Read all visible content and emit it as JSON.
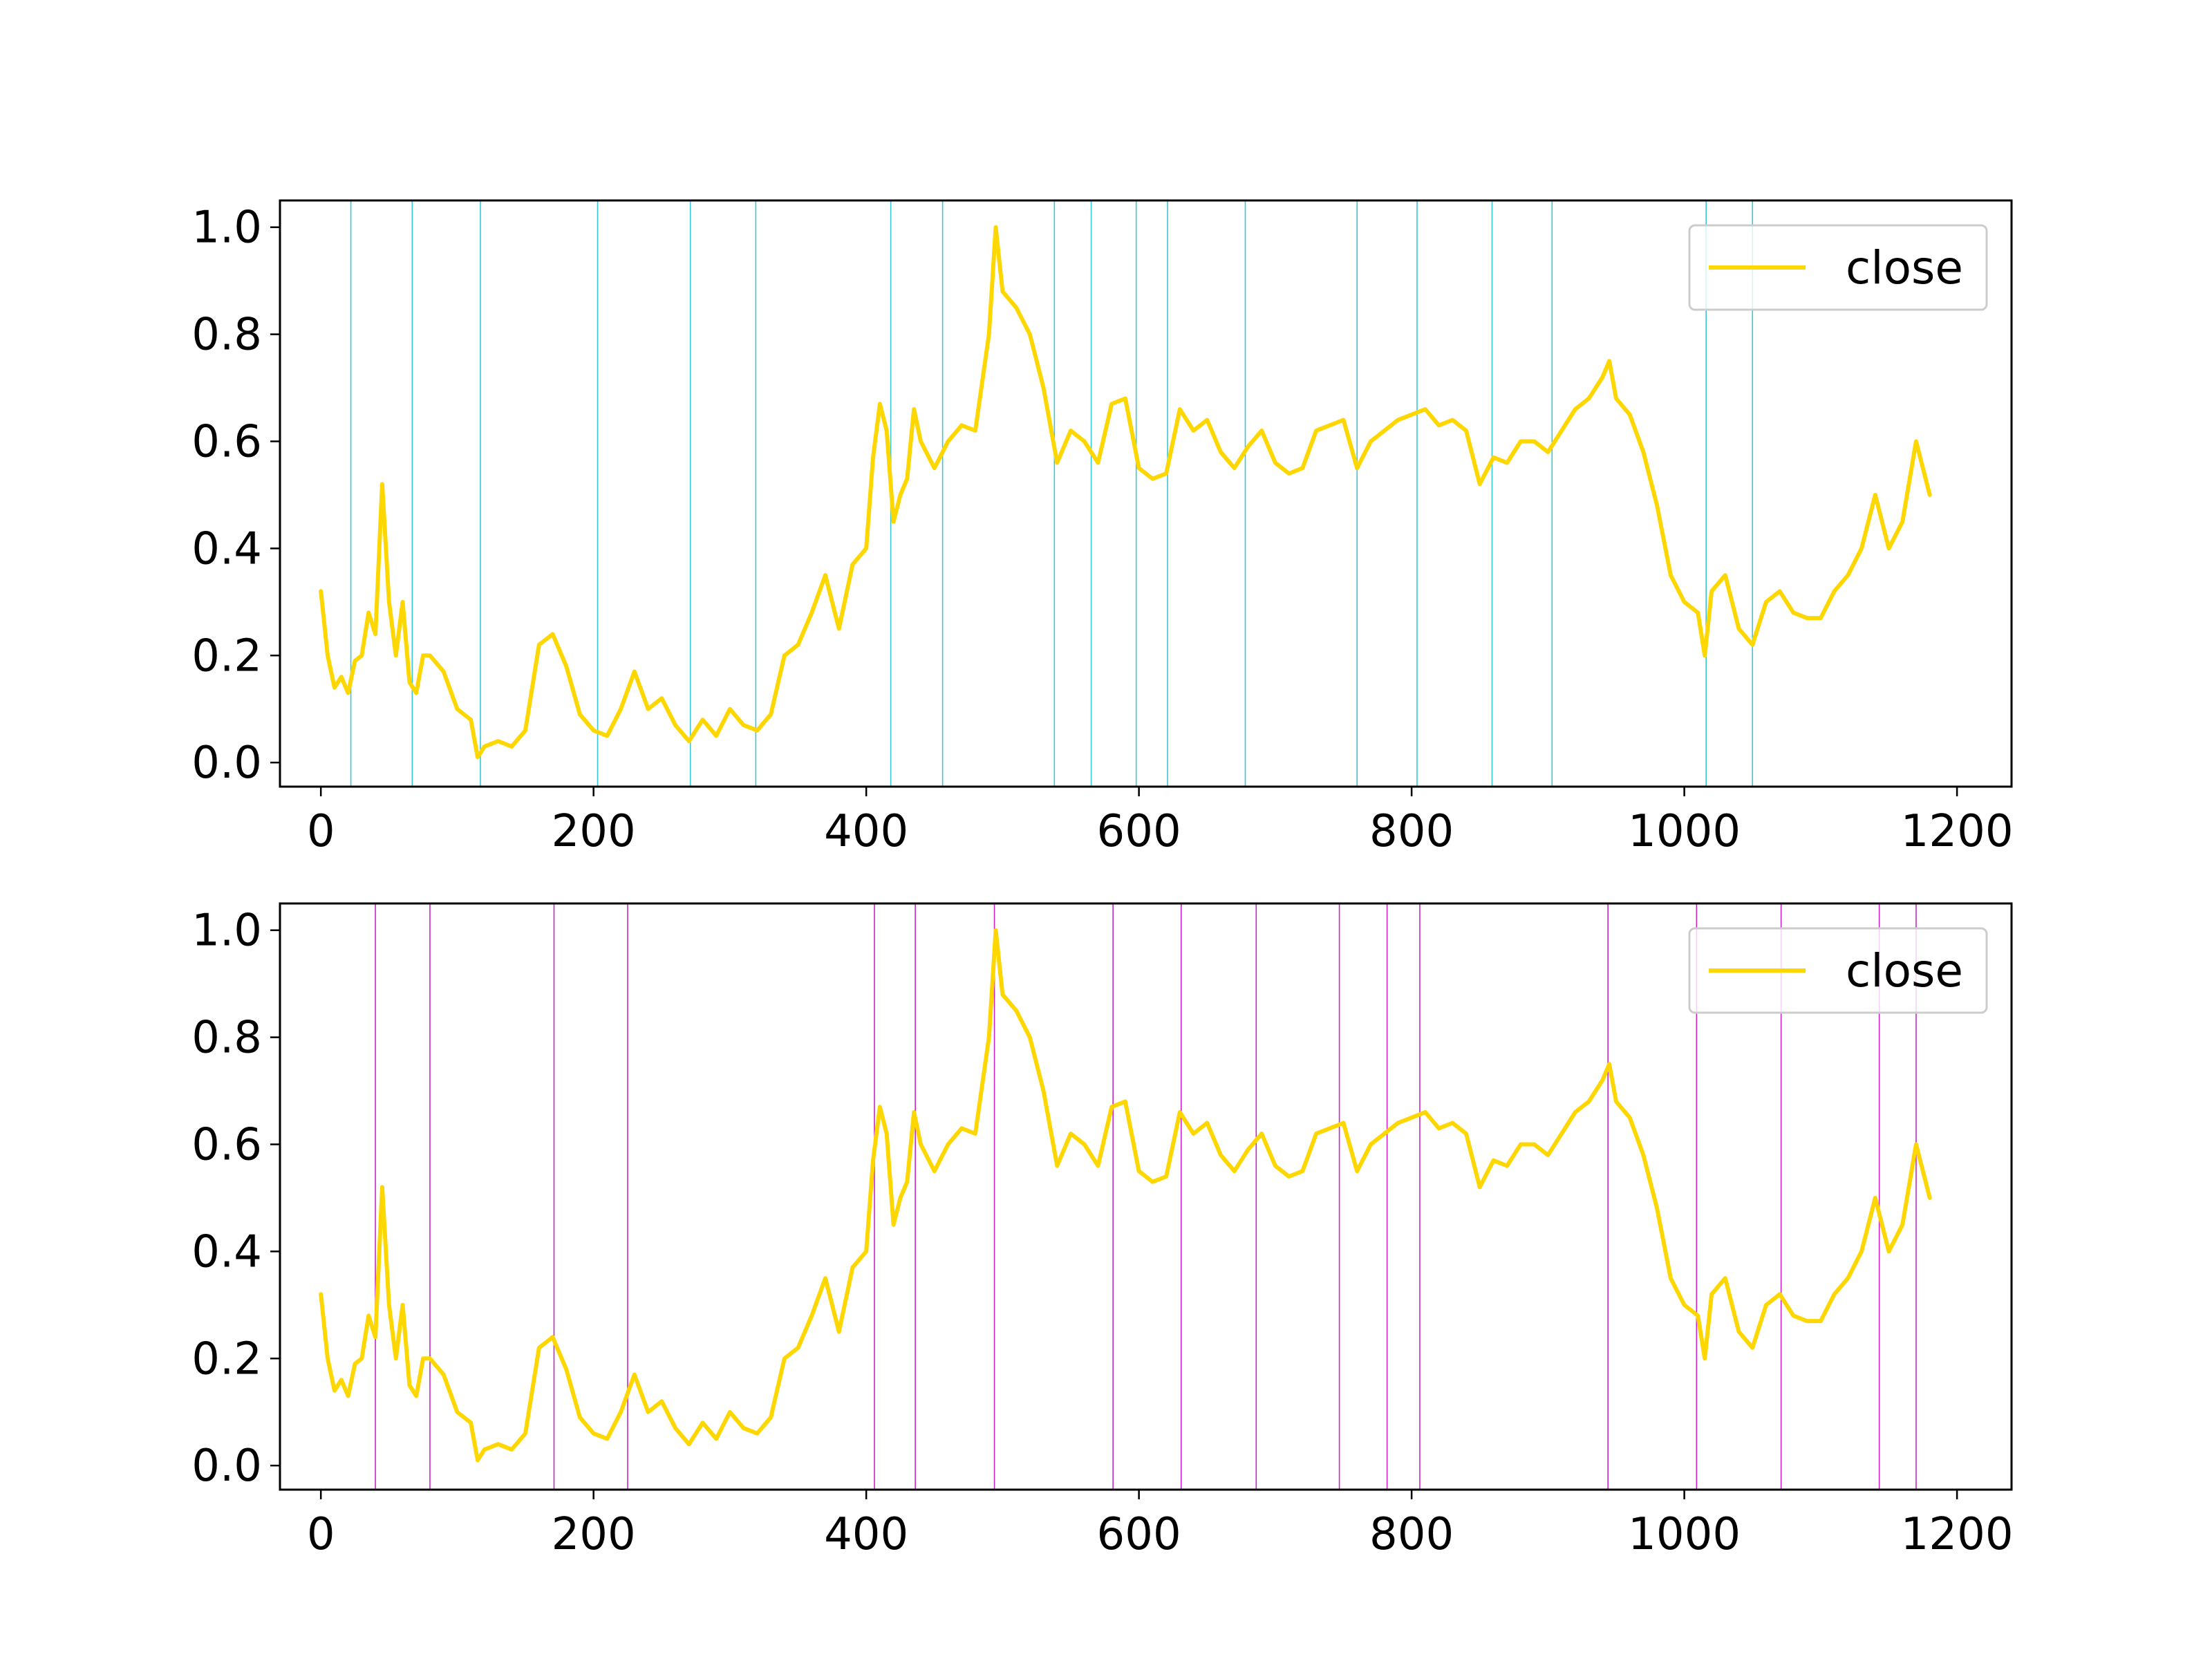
{
  "colors": {
    "line": "#FFD700",
    "buy_markers": "#17BECF",
    "sell_markers": "#BF00BF",
    "axes": "#000000",
    "legend_border": "#CCCCCC"
  },
  "chart_data": [
    {
      "type": "line",
      "legend": {
        "entries": [
          "close"
        ],
        "placement": "top-right"
      },
      "grid": false,
      "xlim": [
        -30,
        1240
      ],
      "ylim": [
        -0.045,
        1.05
      ],
      "xticks": [
        0,
        200,
        400,
        600,
        800,
        1000,
        1200
      ],
      "yticks": [
        0.0,
        0.2,
        0.4,
        0.6,
        0.8,
        1.0
      ],
      "xtick_labels": [
        "0",
        "200",
        "400",
        "600",
        "800",
        "1000",
        "1200"
      ],
      "ytick_labels": [
        "0.0",
        "0.2",
        "0.4",
        "0.6",
        "0.8",
        "1.0"
      ],
      "series": [
        {
          "name": "close",
          "x": [
            0,
            5,
            10,
            15,
            20,
            25,
            30,
            35,
            40,
            45,
            50,
            55,
            60,
            65,
            70,
            75,
            80,
            90,
            100,
            110,
            115,
            120,
            130,
            140,
            150,
            160,
            170,
            180,
            190,
            200,
            210,
            220,
            230,
            240,
            250,
            260,
            270,
            280,
            290,
            300,
            310,
            320,
            330,
            340,
            350,
            360,
            370,
            380,
            390,
            400,
            405,
            410,
            415,
            420,
            425,
            430,
            435,
            440,
            450,
            460,
            470,
            480,
            490,
            495,
            500,
            510,
            520,
            530,
            540,
            550,
            560,
            570,
            580,
            590,
            600,
            610,
            620,
            630,
            640,
            650,
            660,
            670,
            680,
            690,
            700,
            710,
            720,
            730,
            740,
            750,
            760,
            770,
            780,
            790,
            800,
            810,
            820,
            830,
            840,
            850,
            860,
            870,
            880,
            890,
            900,
            910,
            920,
            930,
            940,
            945,
            950,
            960,
            970,
            980,
            990,
            1000,
            1010,
            1015,
            1020,
            1030,
            1040,
            1050,
            1060,
            1070,
            1080,
            1090,
            1100,
            1110,
            1120,
            1130,
            1140,
            1150,
            1160,
            1170,
            1180
          ],
          "y": [
            0.32,
            0.2,
            0.14,
            0.16,
            0.13,
            0.19,
            0.2,
            0.28,
            0.24,
            0.52,
            0.3,
            0.2,
            0.3,
            0.15,
            0.13,
            0.2,
            0.2,
            0.17,
            0.1,
            0.08,
            0.01,
            0.03,
            0.04,
            0.03,
            0.06,
            0.22,
            0.24,
            0.18,
            0.09,
            0.06,
            0.05,
            0.1,
            0.17,
            0.1,
            0.12,
            0.07,
            0.04,
            0.08,
            0.05,
            0.1,
            0.07,
            0.06,
            0.09,
            0.2,
            0.22,
            0.28,
            0.35,
            0.25,
            0.37,
            0.4,
            0.57,
            0.67,
            0.62,
            0.45,
            0.5,
            0.53,
            0.66,
            0.6,
            0.55,
            0.6,
            0.63,
            0.62,
            0.8,
            1.0,
            0.88,
            0.85,
            0.8,
            0.7,
            0.56,
            0.62,
            0.6,
            0.56,
            0.67,
            0.68,
            0.55,
            0.53,
            0.54,
            0.66,
            0.62,
            0.64,
            0.58,
            0.55,
            0.59,
            0.62,
            0.56,
            0.54,
            0.55,
            0.62,
            0.63,
            0.64,
            0.55,
            0.6,
            0.62,
            0.64,
            0.65,
            0.66,
            0.63,
            0.64,
            0.62,
            0.52,
            0.57,
            0.56,
            0.6,
            0.6,
            0.58,
            0.62,
            0.66,
            0.68,
            0.72,
            0.75,
            0.68,
            0.65,
            0.58,
            0.48,
            0.35,
            0.3,
            0.28,
            0.2,
            0.32,
            0.35,
            0.25,
            0.22,
            0.3,
            0.32,
            0.28,
            0.27,
            0.27,
            0.32,
            0.35,
            0.4,
            0.5,
            0.4,
            0.45,
            0.6,
            0.5
          ]
        }
      ],
      "markers": {
        "x": [
          22,
          67,
          117,
          203,
          271,
          319,
          418,
          456,
          538,
          565,
          598,
          621,
          678,
          760,
          804,
          859,
          903,
          1016,
          1050
        ]
      }
    },
    {
      "type": "line",
      "legend": {
        "entries": [
          "close"
        ],
        "placement": "top-right"
      },
      "grid": false,
      "xlim": [
        -30,
        1240
      ],
      "ylim": [
        -0.045,
        1.05
      ],
      "xticks": [
        0,
        200,
        400,
        600,
        800,
        1000,
        1200
      ],
      "yticks": [
        0.0,
        0.2,
        0.4,
        0.6,
        0.8,
        1.0
      ],
      "xtick_labels": [
        "0",
        "200",
        "400",
        "600",
        "800",
        "1000",
        "1200"
      ],
      "ytick_labels": [
        "0.0",
        "0.2",
        "0.4",
        "0.6",
        "0.8",
        "1.0"
      ],
      "series": [
        {
          "name": "close",
          "x": [
            0,
            5,
            10,
            15,
            20,
            25,
            30,
            35,
            40,
            45,
            50,
            55,
            60,
            65,
            70,
            75,
            80,
            90,
            100,
            110,
            115,
            120,
            130,
            140,
            150,
            160,
            170,
            180,
            190,
            200,
            210,
            220,
            230,
            240,
            250,
            260,
            270,
            280,
            290,
            300,
            310,
            320,
            330,
            340,
            350,
            360,
            370,
            380,
            390,
            400,
            405,
            410,
            415,
            420,
            425,
            430,
            435,
            440,
            450,
            460,
            470,
            480,
            490,
            495,
            500,
            510,
            520,
            530,
            540,
            550,
            560,
            570,
            580,
            590,
            600,
            610,
            620,
            630,
            640,
            650,
            660,
            670,
            680,
            690,
            700,
            710,
            720,
            730,
            740,
            750,
            760,
            770,
            780,
            790,
            800,
            810,
            820,
            830,
            840,
            850,
            860,
            870,
            880,
            890,
            900,
            910,
            920,
            930,
            940,
            945,
            950,
            960,
            970,
            980,
            990,
            1000,
            1010,
            1015,
            1020,
            1030,
            1040,
            1050,
            1060,
            1070,
            1080,
            1090,
            1100,
            1110,
            1120,
            1130,
            1140,
            1150,
            1160,
            1170,
            1180
          ],
          "y": [
            0.32,
            0.2,
            0.14,
            0.16,
            0.13,
            0.19,
            0.2,
            0.28,
            0.24,
            0.52,
            0.3,
            0.2,
            0.3,
            0.15,
            0.13,
            0.2,
            0.2,
            0.17,
            0.1,
            0.08,
            0.01,
            0.03,
            0.04,
            0.03,
            0.06,
            0.22,
            0.24,
            0.18,
            0.09,
            0.06,
            0.05,
            0.1,
            0.17,
            0.1,
            0.12,
            0.07,
            0.04,
            0.08,
            0.05,
            0.1,
            0.07,
            0.06,
            0.09,
            0.2,
            0.22,
            0.28,
            0.35,
            0.25,
            0.37,
            0.4,
            0.57,
            0.67,
            0.62,
            0.45,
            0.5,
            0.53,
            0.66,
            0.6,
            0.55,
            0.6,
            0.63,
            0.62,
            0.8,
            1.0,
            0.88,
            0.85,
            0.8,
            0.7,
            0.56,
            0.62,
            0.6,
            0.56,
            0.67,
            0.68,
            0.55,
            0.53,
            0.54,
            0.66,
            0.62,
            0.64,
            0.58,
            0.55,
            0.59,
            0.62,
            0.56,
            0.54,
            0.55,
            0.62,
            0.63,
            0.64,
            0.55,
            0.6,
            0.62,
            0.64,
            0.65,
            0.66,
            0.63,
            0.64,
            0.62,
            0.52,
            0.57,
            0.56,
            0.6,
            0.6,
            0.58,
            0.62,
            0.66,
            0.68,
            0.72,
            0.75,
            0.68,
            0.65,
            0.58,
            0.48,
            0.35,
            0.3,
            0.28,
            0.2,
            0.32,
            0.35,
            0.25,
            0.22,
            0.3,
            0.32,
            0.28,
            0.27,
            0.27,
            0.32,
            0.35,
            0.4,
            0.5,
            0.4,
            0.45,
            0.6,
            0.5
          ]
        }
      ],
      "markers": {
        "x": [
          40,
          80,
          171,
          225,
          406,
          436,
          494,
          581,
          631,
          686,
          747,
          782,
          806,
          944,
          1009,
          1071,
          1143,
          1170
        ]
      }
    }
  ]
}
